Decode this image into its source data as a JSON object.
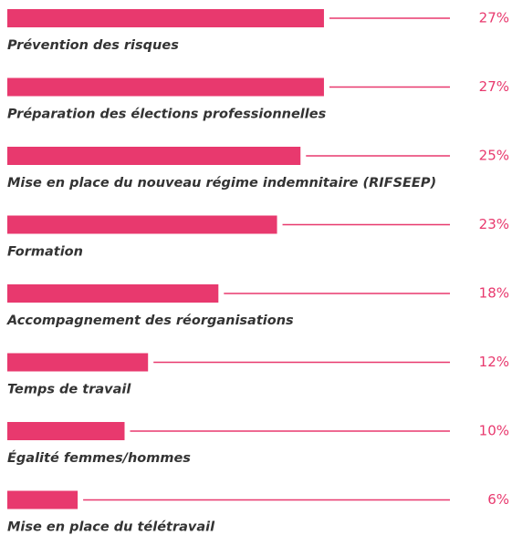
{
  "chart_data": {
    "type": "bar",
    "orientation": "horizontal",
    "color": "#e8396e",
    "categories": [
      "Prévention des risques",
      "Préparation des élections professionnelles",
      "Mise en place du nouveau régime indemnitaire (RIFSEEP)",
      "Formation",
      "Accompagnement des réorganisations",
      "Temps de travail",
      "Égalité femmes/hommes",
      "Mise en place du télétravail"
    ],
    "values": [
      27,
      27,
      25,
      23,
      18,
      12,
      10,
      6
    ],
    "value_labels": [
      "27%",
      "27%",
      "25%",
      "23%",
      "18%",
      "12%",
      "10%",
      "6%"
    ]
  }
}
